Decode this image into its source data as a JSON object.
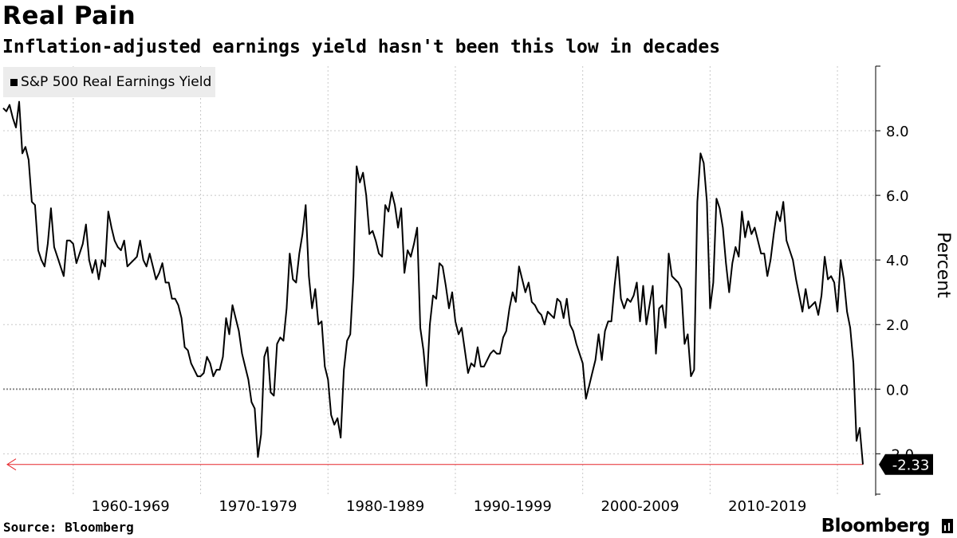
{
  "header": {
    "title": "Real Pain",
    "subtitle": "Inflation-adjusted earnings yield hasn't been this low in decades"
  },
  "legend": {
    "label": "S&P 500 Real Earnings Yield"
  },
  "footer": {
    "source": "Source: Bloomberg",
    "brand": "Bloomberg"
  },
  "colors": {
    "line": "#000000",
    "marker_line": "#e5252a",
    "grid": "#c8c8c8",
    "legend_bg": "#ececec"
  },
  "chart_data": {
    "type": "line",
    "title": "Real Pain",
    "subtitle": "Inflation-adjusted earnings yield hasn't been this low in decades",
    "xlabel": "",
    "ylabel": "Percent",
    "xlim": [
      1954.5,
      2023.0
    ],
    "ylim": [
      -3.3,
      10.0
    ],
    "yticks": [
      -2.0,
      0.0,
      2.0,
      4.0,
      6.0,
      8.0
    ],
    "ytick_labels": [
      "-2.0",
      "0.0",
      "2.0",
      "4.0",
      "6.0",
      "8.0"
    ],
    "x_categories": [
      "1960-1969",
      "1970-1979",
      "1980-1989",
      "1990-1999",
      "2000-2009",
      "2010-2019"
    ],
    "x_category_centers": [
      1964.5,
      1974.5,
      1984.5,
      1994.5,
      2004.5,
      2014.5
    ],
    "x_gridlines": [
      1960,
      1970,
      1980,
      1990,
      2000,
      2010,
      2020
    ],
    "grid": true,
    "legend_position": "top-left",
    "last_value_label": "-2.33",
    "series": [
      {
        "name": "S&P 500 Real Earnings Yield",
        "points": [
          [
            1954.5,
            8.7
          ],
          [
            1954.75,
            8.6
          ],
          [
            1955.0,
            8.8
          ],
          [
            1955.25,
            8.4
          ],
          [
            1955.5,
            8.1
          ],
          [
            1955.75,
            8.9
          ],
          [
            1956.0,
            7.3
          ],
          [
            1956.25,
            7.5
          ],
          [
            1956.5,
            7.1
          ],
          [
            1956.75,
            5.8
          ],
          [
            1957.0,
            5.7
          ],
          [
            1957.25,
            4.3
          ],
          [
            1957.5,
            4.0
          ],
          [
            1957.75,
            3.8
          ],
          [
            1958.0,
            4.5
          ],
          [
            1958.25,
            5.6
          ],
          [
            1958.5,
            4.4
          ],
          [
            1958.75,
            4.1
          ],
          [
            1959.0,
            3.8
          ],
          [
            1959.25,
            3.5
          ],
          [
            1959.5,
            4.6
          ],
          [
            1959.75,
            4.6
          ],
          [
            1960.0,
            4.5
          ],
          [
            1960.25,
            3.9
          ],
          [
            1960.5,
            4.2
          ],
          [
            1960.75,
            4.5
          ],
          [
            1961.0,
            5.1
          ],
          [
            1961.25,
            4.0
          ],
          [
            1961.5,
            3.6
          ],
          [
            1961.75,
            4.0
          ],
          [
            1962.0,
            3.4
          ],
          [
            1962.25,
            4.0
          ],
          [
            1962.5,
            3.8
          ],
          [
            1962.75,
            5.5
          ],
          [
            1963.0,
            5.0
          ],
          [
            1963.25,
            4.6
          ],
          [
            1963.5,
            4.4
          ],
          [
            1963.75,
            4.3
          ],
          [
            1964.0,
            4.6
          ],
          [
            1964.25,
            3.8
          ],
          [
            1964.5,
            3.9
          ],
          [
            1964.75,
            4.0
          ],
          [
            1965.0,
            4.1
          ],
          [
            1965.25,
            4.6
          ],
          [
            1965.5,
            4.0
          ],
          [
            1965.75,
            3.8
          ],
          [
            1966.0,
            4.2
          ],
          [
            1966.25,
            3.8
          ],
          [
            1966.5,
            3.4
          ],
          [
            1966.75,
            3.6
          ],
          [
            1967.0,
            3.9
          ],
          [
            1967.25,
            3.3
          ],
          [
            1967.5,
            3.3
          ],
          [
            1967.75,
            2.8
          ],
          [
            1968.0,
            2.8
          ],
          [
            1968.25,
            2.6
          ],
          [
            1968.5,
            2.2
          ],
          [
            1968.75,
            1.3
          ],
          [
            1969.0,
            1.2
          ],
          [
            1969.25,
            0.8
          ],
          [
            1969.5,
            0.6
          ],
          [
            1969.75,
            0.4
          ],
          [
            1970.0,
            0.4
          ],
          [
            1970.25,
            0.5
          ],
          [
            1970.5,
            1.0
          ],
          [
            1970.75,
            0.8
          ],
          [
            1971.0,
            0.4
          ],
          [
            1971.25,
            0.6
          ],
          [
            1971.5,
            0.6
          ],
          [
            1971.75,
            1.0
          ],
          [
            1972.0,
            2.2
          ],
          [
            1972.25,
            1.7
          ],
          [
            1972.5,
            2.6
          ],
          [
            1972.75,
            2.2
          ],
          [
            1973.0,
            1.8
          ],
          [
            1973.25,
            1.1
          ],
          [
            1973.5,
            0.7
          ],
          [
            1973.75,
            0.3
          ],
          [
            1974.0,
            -0.4
          ],
          [
            1974.25,
            -0.6
          ],
          [
            1974.5,
            -2.1
          ],
          [
            1974.75,
            -1.4
          ],
          [
            1975.0,
            1.0
          ],
          [
            1975.25,
            1.3
          ],
          [
            1975.5,
            -0.1
          ],
          [
            1975.75,
            -0.2
          ],
          [
            1976.0,
            1.4
          ],
          [
            1976.25,
            1.6
          ],
          [
            1976.5,
            1.5
          ],
          [
            1976.75,
            2.5
          ],
          [
            1977.0,
            4.2
          ],
          [
            1977.25,
            3.4
          ],
          [
            1977.5,
            3.3
          ],
          [
            1977.75,
            4.2
          ],
          [
            1978.0,
            4.8
          ],
          [
            1978.25,
            5.7
          ],
          [
            1978.5,
            3.5
          ],
          [
            1978.75,
            2.5
          ],
          [
            1979.0,
            3.1
          ],
          [
            1979.25,
            2.0
          ],
          [
            1979.5,
            2.1
          ],
          [
            1979.75,
            0.7
          ],
          [
            1980.0,
            0.3
          ],
          [
            1980.25,
            -0.8
          ],
          [
            1980.5,
            -1.1
          ],
          [
            1980.75,
            -0.9
          ],
          [
            1981.0,
            -1.5
          ],
          [
            1981.25,
            0.6
          ],
          [
            1981.5,
            1.5
          ],
          [
            1981.75,
            1.7
          ],
          [
            1982.0,
            3.5
          ],
          [
            1982.25,
            6.9
          ],
          [
            1982.5,
            6.4
          ],
          [
            1982.75,
            6.7
          ],
          [
            1983.0,
            6.0
          ],
          [
            1983.25,
            4.8
          ],
          [
            1983.5,
            4.9
          ],
          [
            1983.75,
            4.6
          ],
          [
            1984.0,
            4.2
          ],
          [
            1984.25,
            4.1
          ],
          [
            1984.5,
            5.7
          ],
          [
            1984.75,
            5.5
          ],
          [
            1985.0,
            6.1
          ],
          [
            1985.25,
            5.7
          ],
          [
            1985.5,
            5.0
          ],
          [
            1985.75,
            5.6
          ],
          [
            1986.0,
            3.6
          ],
          [
            1986.25,
            4.3
          ],
          [
            1986.5,
            4.1
          ],
          [
            1986.75,
            4.5
          ],
          [
            1987.0,
            5.0
          ],
          [
            1987.25,
            1.9
          ],
          [
            1987.5,
            1.2
          ],
          [
            1987.75,
            0.1
          ],
          [
            1988.0,
            2.0
          ],
          [
            1988.25,
            2.9
          ],
          [
            1988.5,
            2.8
          ],
          [
            1988.75,
            3.9
          ],
          [
            1989.0,
            3.8
          ],
          [
            1989.25,
            3.2
          ],
          [
            1989.5,
            2.5
          ],
          [
            1989.75,
            3.0
          ],
          [
            1990.0,
            2.1
          ],
          [
            1990.25,
            1.7
          ],
          [
            1990.5,
            1.9
          ],
          [
            1990.75,
            1.2
          ],
          [
            1991.0,
            0.5
          ],
          [
            1991.25,
            0.8
          ],
          [
            1991.5,
            0.7
          ],
          [
            1991.75,
            1.3
          ],
          [
            1992.0,
            0.7
          ],
          [
            1992.25,
            0.7
          ],
          [
            1992.5,
            0.9
          ],
          [
            1992.75,
            1.1
          ],
          [
            1993.0,
            1.2
          ],
          [
            1993.25,
            1.1
          ],
          [
            1993.5,
            1.1
          ],
          [
            1993.75,
            1.6
          ],
          [
            1994.0,
            1.8
          ],
          [
            1994.25,
            2.5
          ],
          [
            1994.5,
            3.0
          ],
          [
            1994.75,
            2.7
          ],
          [
            1995.0,
            3.8
          ],
          [
            1995.25,
            3.4
          ],
          [
            1995.5,
            3.0
          ],
          [
            1995.75,
            3.3
          ],
          [
            1996.0,
            2.7
          ],
          [
            1996.25,
            2.6
          ],
          [
            1996.5,
            2.4
          ],
          [
            1996.75,
            2.3
          ],
          [
            1997.0,
            2.0
          ],
          [
            1997.25,
            2.4
          ],
          [
            1997.5,
            2.3
          ],
          [
            1997.75,
            2.2
          ],
          [
            1998.0,
            2.8
          ],
          [
            1998.25,
            2.7
          ],
          [
            1998.5,
            2.2
          ],
          [
            1998.75,
            2.8
          ],
          [
            1999.0,
            2.0
          ],
          [
            1999.25,
            1.8
          ],
          [
            1999.5,
            1.4
          ],
          [
            1999.75,
            1.1
          ],
          [
            2000.0,
            0.8
          ],
          [
            2000.25,
            -0.3
          ],
          [
            2000.5,
            0.1
          ],
          [
            2000.75,
            0.5
          ],
          [
            2001.0,
            0.9
          ],
          [
            2001.25,
            1.7
          ],
          [
            2001.5,
            0.9
          ],
          [
            2001.75,
            1.8
          ],
          [
            2002.0,
            2.1
          ],
          [
            2002.25,
            2.1
          ],
          [
            2002.5,
            3.2
          ],
          [
            2002.75,
            4.1
          ],
          [
            2003.0,
            2.8
          ],
          [
            2003.25,
            2.5
          ],
          [
            2003.5,
            2.8
          ],
          [
            2003.75,
            2.7
          ],
          [
            2004.0,
            2.9
          ],
          [
            2004.25,
            3.3
          ],
          [
            2004.5,
            2.1
          ],
          [
            2004.75,
            3.2
          ],
          [
            2005.0,
            2.0
          ],
          [
            2005.25,
            2.6
          ],
          [
            2005.5,
            3.2
          ],
          [
            2005.75,
            1.1
          ],
          [
            2006.0,
            2.5
          ],
          [
            2006.25,
            2.6
          ],
          [
            2006.5,
            1.9
          ],
          [
            2006.75,
            4.2
          ],
          [
            2007.0,
            3.5
          ],
          [
            2007.25,
            3.4
          ],
          [
            2007.5,
            3.3
          ],
          [
            2007.75,
            3.1
          ],
          [
            2008.0,
            1.4
          ],
          [
            2008.25,
            1.7
          ],
          [
            2008.5,
            0.4
          ],
          [
            2008.75,
            0.6
          ],
          [
            2009.0,
            5.8
          ],
          [
            2009.25,
            7.3
          ],
          [
            2009.5,
            7.0
          ],
          [
            2009.75,
            5.8
          ],
          [
            2010.0,
            2.5
          ],
          [
            2010.25,
            3.3
          ],
          [
            2010.5,
            5.9
          ],
          [
            2010.75,
            5.6
          ],
          [
            2011.0,
            5.0
          ],
          [
            2011.25,
            3.9
          ],
          [
            2011.5,
            3.0
          ],
          [
            2011.75,
            3.9
          ],
          [
            2012.0,
            4.4
          ],
          [
            2012.25,
            4.1
          ],
          [
            2012.5,
            5.5
          ],
          [
            2012.75,
            4.7
          ],
          [
            2013.0,
            5.2
          ],
          [
            2013.25,
            4.8
          ],
          [
            2013.5,
            5.0
          ],
          [
            2013.75,
            4.6
          ],
          [
            2014.0,
            4.2
          ],
          [
            2014.25,
            4.2
          ],
          [
            2014.5,
            3.5
          ],
          [
            2014.75,
            4.0
          ],
          [
            2015.0,
            4.8
          ],
          [
            2015.25,
            5.5
          ],
          [
            2015.5,
            5.2
          ],
          [
            2015.75,
            5.8
          ],
          [
            2016.0,
            4.6
          ],
          [
            2016.25,
            4.3
          ],
          [
            2016.5,
            4.0
          ],
          [
            2016.75,
            3.4
          ],
          [
            2017.0,
            2.9
          ],
          [
            2017.25,
            2.4
          ],
          [
            2017.5,
            3.1
          ],
          [
            2017.75,
            2.5
          ],
          [
            2018.0,
            2.6
          ],
          [
            2018.25,
            2.7
          ],
          [
            2018.5,
            2.3
          ],
          [
            2018.75,
            2.9
          ],
          [
            2019.0,
            4.1
          ],
          [
            2019.25,
            3.4
          ],
          [
            2019.5,
            3.5
          ],
          [
            2019.75,
            3.3
          ],
          [
            2020.0,
            2.4
          ],
          [
            2020.25,
            4.0
          ],
          [
            2020.5,
            3.4
          ],
          [
            2020.75,
            2.4
          ],
          [
            2021.0,
            1.9
          ],
          [
            2021.25,
            0.8
          ],
          [
            2021.5,
            -1.6
          ],
          [
            2021.75,
            -1.2
          ],
          [
            2022.0,
            -2.33
          ]
        ]
      }
    ]
  }
}
